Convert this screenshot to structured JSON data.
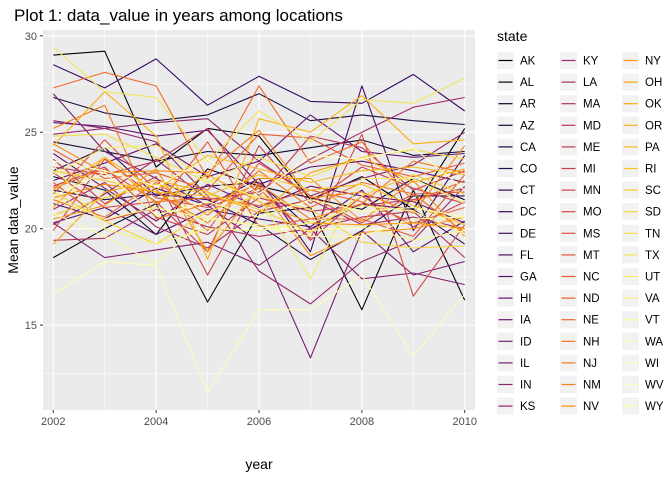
{
  "chart_data": {
    "type": "line",
    "title": "Plot 1: data_value in years among locations",
    "xlabel": "year",
    "ylabel": "Mean data_value",
    "xlim": [
      2001.8,
      2010.2
    ],
    "ylim": [
      10.6,
      30.3
    ],
    "x_ticks": [
      2002,
      2004,
      2006,
      2008,
      2010
    ],
    "y_ticks": [
      15,
      20,
      25,
      30
    ],
    "grid": true,
    "legend_title": "state",
    "legend_position": "right",
    "x": [
      2002,
      2003,
      2004,
      2005,
      2006,
      2007,
      2008,
      2009,
      2010
    ],
    "series": [
      {
        "name": "AK",
        "color": "#000004",
        "values": [
          29.0,
          29.2,
          23.2,
          25.2,
          24.8,
          21.5,
          22.7,
          21.0,
          25.2
        ]
      },
      {
        "name": "AL",
        "color": "#030210",
        "values": [
          18.5,
          20.0,
          21.3,
          16.2,
          20.8,
          21.1,
          15.8,
          22.0,
          16.3
        ]
      },
      {
        "name": "AR",
        "color": "#08051E",
        "values": [
          22.7,
          22.0,
          19.7,
          23.1,
          22.2,
          21.6,
          21.0,
          22.6,
          21.5
        ]
      },
      {
        "name": "AZ",
        "color": "#100A2E",
        "values": [
          24.5,
          24.0,
          23.5,
          24.0,
          23.8,
          24.2,
          24.6,
          23.8,
          24.0
        ]
      },
      {
        "name": "CA",
        "color": "#190C3E",
        "values": [
          26.8,
          26.0,
          25.6,
          25.9,
          27.0,
          25.6,
          25.9,
          25.6,
          25.4
        ]
      },
      {
        "name": "CO",
        "color": "#230C4F",
        "values": [
          22.0,
          21.5,
          21.8,
          21.5,
          20.2,
          18.4,
          19.9,
          21.7,
          21.7
        ]
      },
      {
        "name": "CT",
        "color": "#2E0B5C",
        "values": [
          23.0,
          24.2,
          21.7,
          22.2,
          22.4,
          20.0,
          21.3,
          21.0,
          19.2
        ]
      },
      {
        "name": "DC",
        "color": "#3A0963",
        "values": [
          28.5,
          27.3,
          28.8,
          26.4,
          27.9,
          26.6,
          26.5,
          28.0,
          26.1
        ]
      },
      {
        "name": "DE",
        "color": "#450A69",
        "values": [
          21.3,
          20.5,
          22.1,
          21.2,
          22.6,
          18.8,
          27.4,
          19.9,
          23.8
        ]
      },
      {
        "name": "FL",
        "color": "#4F0D6C",
        "values": [
          20.3,
          21.1,
          19.7,
          21.0,
          20.5,
          20.1,
          22.0,
          18.8,
          20.4
        ]
      },
      {
        "name": "GA",
        "color": "#59106D",
        "values": [
          25.5,
          25.3,
          24.8,
          25.1,
          22.3,
          23.2,
          23.5,
          23.0,
          22.4
        ]
      },
      {
        "name": "HI",
        "color": "#63146E",
        "values": [
          22.5,
          23.4,
          24.4,
          22.7,
          23.5,
          25.9,
          24.0,
          23.7,
          23.9
        ]
      },
      {
        "name": "IA",
        "color": "#6D186E",
        "values": [
          23.9,
          22.1,
          20.4,
          22.3,
          21.1,
          22.2,
          21.7,
          21.4,
          20.3
        ]
      },
      {
        "name": "ID",
        "color": "#761C6E",
        "values": [
          27.0,
          24.0,
          22.6,
          21.2,
          19.3,
          13.3,
          19.9,
          17.6,
          18.3
        ]
      },
      {
        "name": "IL",
        "color": "#80206D",
        "values": [
          20.3,
          18.5,
          18.9,
          19.3,
          18.1,
          20.0,
          17.4,
          17.7,
          17.1
        ]
      },
      {
        "name": "IN",
        "color": "#89246B",
        "values": [
          25.6,
          25.2,
          25.5,
          25.7,
          23.5,
          21.7,
          22.6,
          23.3,
          25.0
        ]
      },
      {
        "name": "KS",
        "color": "#932769",
        "values": [
          24.9,
          25.2,
          24.5,
          21.7,
          17.8,
          16.1,
          18.3,
          19.4,
          22.2
        ]
      },
      {
        "name": "KY",
        "color": "#9C2B66",
        "values": [
          20.2,
          21.8,
          23.6,
          21.5,
          21.9,
          23.6,
          25.0,
          26.3,
          26.8
        ]
      },
      {
        "name": "LA",
        "color": "#A52F62",
        "values": [
          21.0,
          22.4,
          20.1,
          19.0,
          20.9,
          21.5,
          20.2,
          20.6,
          20.0
        ]
      },
      {
        "name": "MA",
        "color": "#AE335E",
        "values": [
          19.4,
          19.5,
          21.0,
          20.1,
          19.6,
          20.0,
          20.6,
          20.9,
          18.5
        ]
      },
      {
        "name": "MD",
        "color": "#B73759",
        "values": [
          23.2,
          22.8,
          23.5,
          25.2,
          21.7,
          24.8,
          24.2,
          22.0,
          23.0
        ]
      },
      {
        "name": "ME",
        "color": "#BF3B54",
        "values": [
          22.2,
          23.2,
          20.6,
          19.7,
          21.6,
          20.9,
          21.2,
          21.5,
          22.1
        ]
      },
      {
        "name": "MI",
        "color": "#C8404F",
        "values": [
          23.6,
          21.3,
          22.7,
          17.6,
          22.4,
          19.4,
          21.7,
          20.1,
          21.4
        ]
      },
      {
        "name": "MN",
        "color": "#CF454A",
        "values": [
          22.9,
          21.1,
          21.4,
          18.8,
          24.3,
          21.3,
          23.2,
          22.1,
          21.3
        ]
      },
      {
        "name": "MO",
        "color": "#D64A44",
        "values": [
          19.9,
          23.6,
          21.6,
          21.1,
          22.1,
          19.5,
          24.9,
          16.5,
          20.2
        ]
      },
      {
        "name": "MS",
        "color": "#DD503E",
        "values": [
          21.8,
          24.6,
          22.0,
          19.9,
          23.4,
          21.7,
          20.3,
          21.8,
          21.9
        ]
      },
      {
        "name": "MT",
        "color": "#E35638",
        "values": [
          22.4,
          20.4,
          21.1,
          24.5,
          20.1,
          20.5,
          20.5,
          19.6,
          22.8
        ]
      },
      {
        "name": "NC",
        "color": "#E85D33",
        "values": [
          24.1,
          22.6,
          22.9,
          22.0,
          24.9,
          24.7,
          23.3,
          22.7,
          23.4
        ]
      },
      {
        "name": "ND",
        "color": "#ED632D",
        "values": [
          22.1,
          23.1,
          21.4,
          21.6,
          21.2,
          22.0,
          21.4,
          20.3,
          21.1
        ]
      },
      {
        "name": "NE",
        "color": "#F16A26",
        "values": [
          27.3,
          28.1,
          27.4,
          22.6,
          27.4,
          23.4,
          24.5,
          21.4,
          22.5
        ]
      },
      {
        "name": "NH",
        "color": "#F47220",
        "values": [
          21.5,
          20.6,
          22.4,
          20.7,
          23.0,
          21.1,
          22.4,
          21.8,
          19.8
        ]
      },
      {
        "name": "NJ",
        "color": "#F77B1A",
        "values": [
          25.2,
          26.4,
          20.5,
          21.3,
          22.3,
          20.5,
          21.3,
          23.5,
          22.9
        ]
      },
      {
        "name": "NM",
        "color": "#F98313",
        "values": [
          24.4,
          22.9,
          23.0,
          22.9,
          25.1,
          21.6,
          21.9,
          20.8,
          24.3
        ]
      },
      {
        "name": "NV",
        "color": "#FA8C0D",
        "values": [
          21.6,
          22.3,
          21.9,
          20.3,
          22.6,
          22.6,
          20.4,
          22.5,
          19.6
        ]
      },
      {
        "name": "NY",
        "color": "#FB9509",
        "values": [
          20.5,
          21.2,
          23.1,
          18.8,
          22.2,
          18.6,
          19.8,
          20.0,
          20.6
        ]
      },
      {
        "name": "OH",
        "color": "#FB9E09",
        "values": [
          21.1,
          23.7,
          21.3,
          22.8,
          21.4,
          20.3,
          20.2,
          20.3,
          20.0
        ]
      },
      {
        "name": "OK",
        "color": "#FBA70D",
        "values": [
          19.2,
          21.9,
          22.5,
          21.9,
          20.8,
          22.9,
          23.7,
          22.4,
          23.1
        ]
      },
      {
        "name": "OR",
        "color": "#FBB014",
        "values": [
          24.3,
          27.1,
          24.8,
          18.4,
          25.7,
          25.0,
          26.9,
          24.4,
          24.6
        ]
      },
      {
        "name": "PA",
        "color": "#FAB91C",
        "values": [
          22.0,
          23.7,
          22.0,
          23.8,
          23.1,
          22.4,
          23.0,
          23.2,
          22.8
        ]
      },
      {
        "name": "RI",
        "color": "#F9C226",
        "values": [
          23.0,
          22.5,
          21.9,
          21.7,
          22.8,
          22.0,
          22.3,
          21.2,
          20.2
        ]
      },
      {
        "name": "SC",
        "color": "#F7CB31",
        "values": [
          20.7,
          21.6,
          22.3,
          21.8,
          21.0,
          19.8,
          21.7,
          22.8,
          21.8
        ]
      },
      {
        "name": "SD",
        "color": "#F5D43D",
        "values": [
          21.9,
          20.4,
          19.2,
          20.9,
          21.7,
          21.0,
          19.3,
          19.0,
          19.1
        ]
      },
      {
        "name": "TN",
        "color": "#F3DD4B",
        "values": [
          24.8,
          24.9,
          23.7,
          22.4,
          23.7,
          22.7,
          23.7,
          24.1,
          23.6
        ]
      },
      {
        "name": "TX",
        "color": "#F2E55B",
        "values": [
          29.4,
          27.1,
          26.8,
          23.5,
          26.1,
          24.5,
          26.7,
          26.5,
          27.8
        ]
      },
      {
        "name": "UT",
        "color": "#F3EC6D",
        "values": [
          22.8,
          24.2,
          24.3,
          22.5,
          21.6,
          17.4,
          22.6,
          22.6,
          21.3
        ]
      },
      {
        "name": "VA",
        "color": "#F5F381",
        "values": [
          23.3,
          20.0,
          19.2,
          20.0,
          19.9,
          20.3,
          21.2,
          20.9,
          19.7
        ]
      },
      {
        "name": "VT",
        "color": "#F8F895",
        "values": [
          21.6,
          20.5,
          21.1,
          20.5,
          20.2,
          19.9,
          20.1,
          19.4,
          19.9
        ]
      },
      {
        "name": "WA",
        "color": "#FAFAA7",
        "values": [
          20.8,
          19.6,
          18.2,
          20.6,
          20.1,
          19.6,
          19.6,
          20.5,
          20.6
        ]
      },
      {
        "name": "WI",
        "color": "#FCFDB8",
        "values": [
          16.6,
          18.3,
          18.1,
          11.5,
          15.8,
          15.8,
          17.6,
          13.4,
          16.6
        ]
      },
      {
        "name": "WV",
        "color": "#FCFEC4",
        "values": [
          23.5,
          23.0,
          22.2,
          23.6,
          21.8,
          23.8,
          23.6,
          24.2,
          22.0
        ]
      },
      {
        "name": "WY",
        "color": "#FCFFA4",
        "values": [
          21.7,
          22.9,
          20.7,
          21.4,
          20.6,
          21.5,
          20.9,
          21.1,
          20.6
        ]
      }
    ]
  }
}
